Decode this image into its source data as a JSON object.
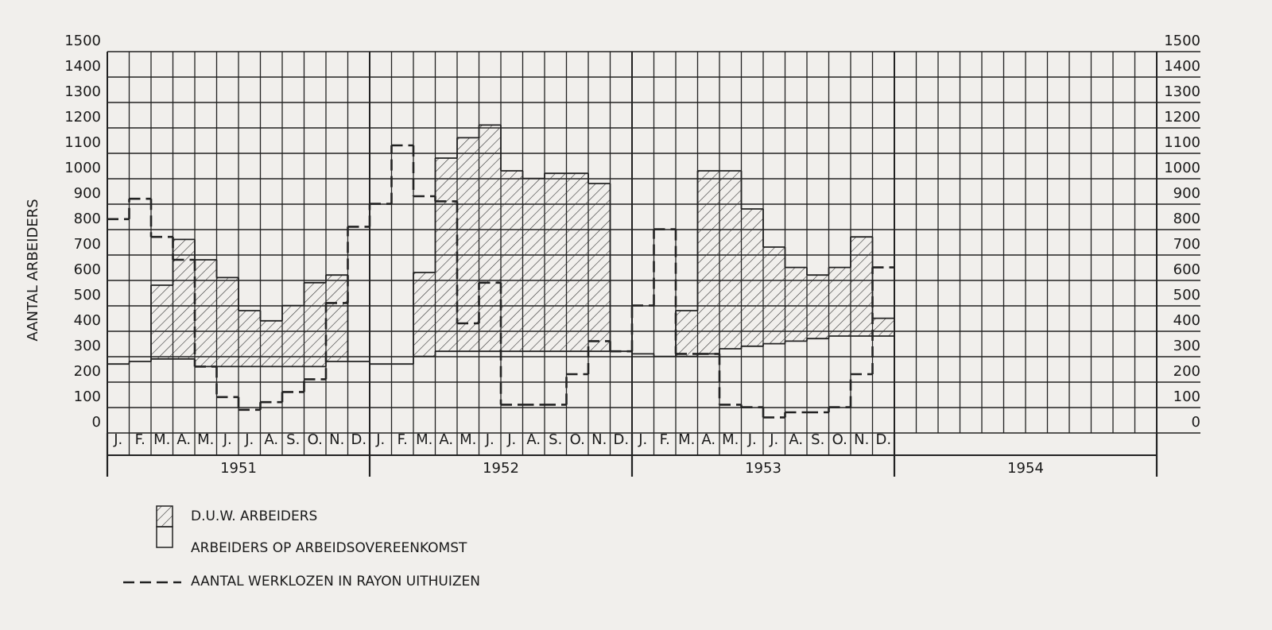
{
  "chart_data": {
    "type": "step",
    "y_label": "AANTAL ARBEIDERS",
    "months": [
      "J.",
      "F.",
      "M.",
      "A.",
      "M.",
      "J.",
      "J.",
      "A.",
      "S.",
      "O.",
      "N.",
      "D.",
      "J.",
      "F.",
      "M.",
      "A.",
      "M.",
      "J.",
      "J.",
      "A.",
      "S.",
      "O.",
      "N.",
      "D.",
      "J.",
      "F.",
      "M.",
      "A.",
      "M.",
      "J.",
      "J.",
      "A.",
      "S.",
      "O.",
      "N.",
      "D."
    ],
    "years": [
      "1951",
      "1952",
      "1953",
      "1954"
    ],
    "ylim": [
      0,
      1500
    ],
    "yticks": [
      0,
      100,
      200,
      300,
      400,
      500,
      600,
      700,
      800,
      900,
      1000,
      1100,
      1200,
      1300,
      1400,
      1500
    ],
    "grid": true,
    "series": [
      {
        "name": "D.U.W. ARBEIDERS",
        "color": "#222222",
        "style": "hatch",
        "values": [
          0,
          0,
          290,
          470,
          420,
          350,
          220,
          180,
          240,
          330,
          340,
          0,
          0,
          0,
          330,
          760,
          840,
          890,
          710,
          680,
          700,
          700,
          660,
          0,
          0,
          0,
          180,
          720,
          700,
          540,
          380,
          290,
          250,
          270,
          390,
          70
        ]
      },
      {
        "name": "ARBEIDERS OP ARBEIDSOVEREENKOMST",
        "color": "#222222",
        "style": "solid",
        "values": [
          240,
          250,
          260,
          260,
          230,
          230,
          230,
          230,
          230,
          230,
          250,
          250,
          240,
          240,
          270,
          290,
          290,
          290,
          290,
          290,
          290,
          290,
          290,
          290,
          280,
          270,
          270,
          280,
          300,
          310,
          320,
          330,
          340,
          350,
          350,
          350
        ]
      },
      {
        "name": "AANTAL WERKLOZEN IN RAYON UITHUIZEN",
        "color": "#222222",
        "style": "dashed",
        "values": [
          810,
          890,
          740,
          650,
          230,
          110,
          60,
          90,
          130,
          180,
          480,
          780,
          870,
          1100,
          900,
          880,
          400,
          560,
          80,
          80,
          80,
          200,
          330,
          290,
          470,
          770,
          280,
          280,
          80,
          70,
          30,
          50,
          50,
          70,
          200,
          620
        ]
      }
    ]
  }
}
